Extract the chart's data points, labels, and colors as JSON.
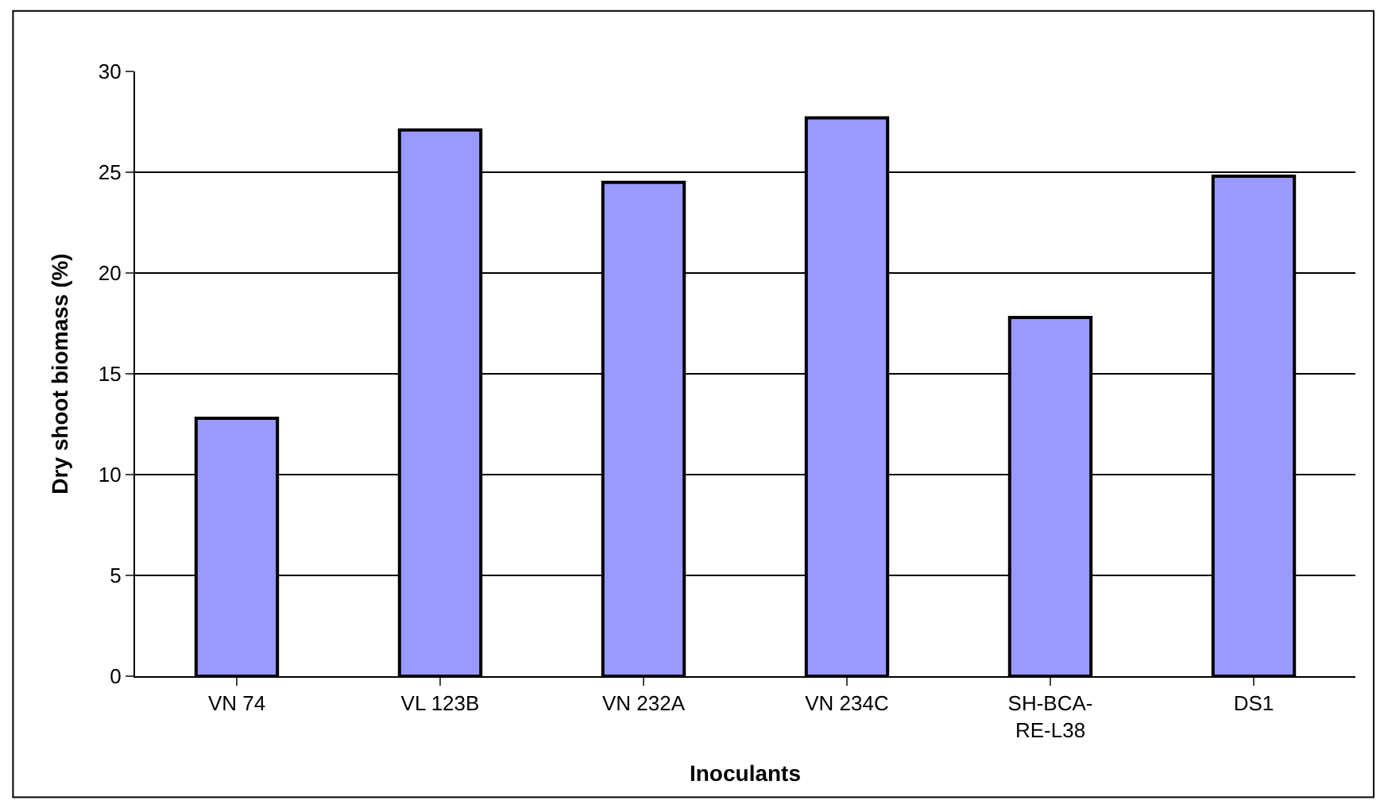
{
  "chart_data": {
    "type": "bar",
    "xlabel": "Inoculants",
    "ylabel": "Dry shoot biomass (%)",
    "categories": [
      "VN 74",
      "VL 123B",
      "VN 232A",
      "VN 234C",
      "SH-BCA-\nRE-L38",
      "DS1"
    ],
    "values": [
      12.8,
      27.1,
      24.5,
      27.7,
      17.8,
      24.8
    ],
    "color": "#9999ff",
    "ylim": [
      0,
      30
    ],
    "yticks": [
      0,
      5,
      10,
      15,
      20,
      25,
      30
    ],
    "grid": "y",
    "legend": false
  }
}
